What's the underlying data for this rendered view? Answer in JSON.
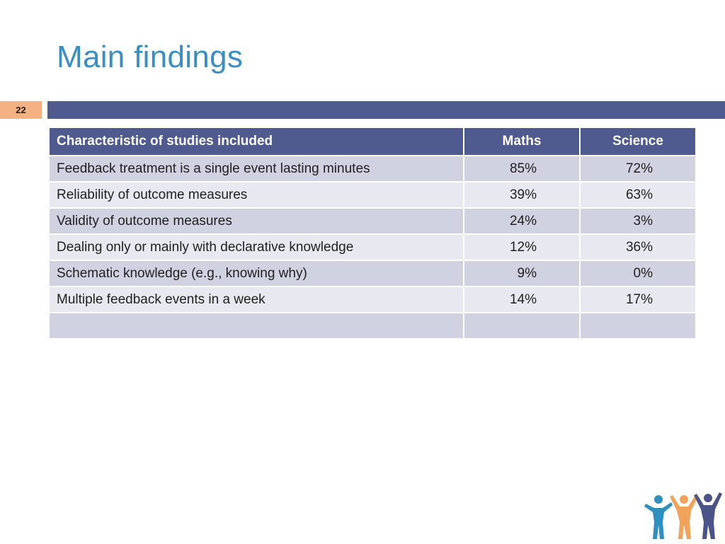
{
  "slide": {
    "title": "Main findings",
    "page_number": "22"
  },
  "table": {
    "headers": [
      "Characteristic of studies included",
      "Maths",
      "Science"
    ],
    "rows": [
      {
        "label": "Feedback treatment is a single event lasting minutes",
        "maths": "85%",
        "science": "72%"
      },
      {
        "label": "Reliability of outcome measures",
        "maths": "39%",
        "science": "63%"
      },
      {
        "label": "Validity of outcome measures",
        "maths": "24%",
        "science": "3%"
      },
      {
        "label": "Dealing only or mainly with declarative knowledge",
        "maths": "12%",
        "science": "36%"
      },
      {
        "label": "Schematic knowledge (e.g., knowing why)",
        "maths": "9%",
        "science": "0%"
      },
      {
        "label": "Multiple feedback events in a week",
        "maths": "14%",
        "science": "17%"
      },
      {
        "label": "",
        "maths": "",
        "science": ""
      }
    ]
  },
  "colors": {
    "title": "#3b8ec4",
    "band": "#4f5a8f",
    "badge": "#f4b183",
    "row_dark": "#d0d2e1",
    "row_light": "#e8e9f0",
    "logo_figures": [
      "#2f8fc0",
      "#f0a35a",
      "#4a5488"
    ]
  },
  "logo": {
    "icon": "people-group-icon"
  }
}
